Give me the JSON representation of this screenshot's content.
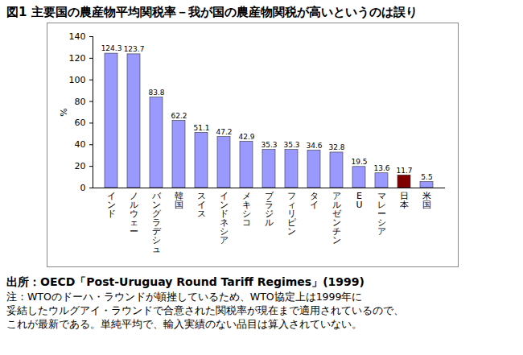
{
  "chart_data": {
    "type": "bar",
    "title": "図1 主要国の農産物平均関税率－我が国の農産物関税が高いというのは誤り",
    "y_label": "%",
    "categories": [
      "インド",
      "ノルウェー",
      "バングラデシュ",
      "韓国",
      "スイス",
      "インドネシア",
      "メキシコ",
      "ブラジル",
      "フィリピン",
      "タイ",
      "アルゼンチン",
      "EU",
      "マレーシア",
      "日本",
      "米国"
    ],
    "values": [
      124.3,
      123.7,
      83.8,
      62.2,
      51.1,
      47.2,
      42.9,
      35.3,
      35.3,
      34.6,
      32.8,
      19.5,
      13.6,
      11.7,
      5.5
    ],
    "colors": [
      "#9999ff",
      "#9999ff",
      "#9999ff",
      "#9999ff",
      "#9999ff",
      "#9999ff",
      "#9999ff",
      "#9999ff",
      "#9999ff",
      "#9999ff",
      "#9999ff",
      "#9999ff",
      "#9999ff",
      "#800000",
      "#9999ff"
    ],
    "ylim": [
      0,
      140
    ],
    "yticks": [
      0,
      20,
      40,
      60,
      80,
      100,
      120,
      140
    ],
    "grid": false,
    "data_labels": true,
    "annotations": [
      "出所：OECD「Post-Uruguay Round Tariff Regimes」(1999)",
      "注：WTOのドーハ・ラウンドが頓挫しているため、WTO協定上は1999年に",
      "妥結したウルグアイ・ラウンドで合意された関税率が現在まで適用されているので、",
      "これが最新である。単純平均で、輸入実績のない品目は算入されていない。"
    ]
  }
}
